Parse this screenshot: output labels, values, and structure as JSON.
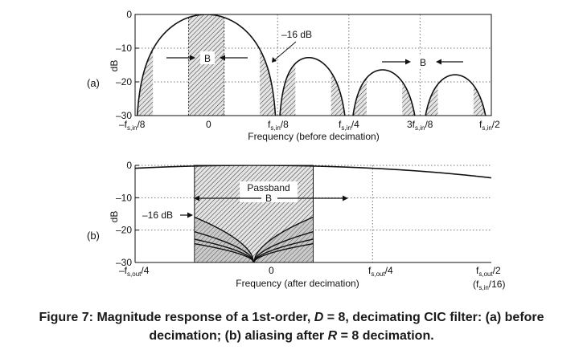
{
  "chart_data": [
    {
      "panel_label": "(a)",
      "type": "line",
      "xlabel": "Frequency (before decimation)",
      "ylabel": "dB",
      "x_tick_labels": [
        "–f",
        "0",
        "f",
        "f",
        "3f",
        "f"
      ],
      "x_tick_values": [
        -0.125,
        0,
        0.125,
        0.25,
        0.375,
        0.5
      ],
      "y_ticks": [
        0,
        -10,
        -20,
        -30
      ],
      "y_tick_labels": [
        "0",
        "–10",
        "–20",
        "–30"
      ],
      "xlim": [
        -0.125,
        0.5
      ],
      "ylim": [
        -30,
        0
      ],
      "grid": true,
      "curve": "20*log10(|sin(8*pi*f)/(8*sin(pi*f))|)",
      "series_nulls": [
        0.125,
        0.25,
        0.375,
        0.5
      ],
      "sidelobe_peaks_db": [
        -13.5,
        -17.8,
        -19.9,
        -20.7
      ],
      "passband": [
        -0.03125,
        0.03125
      ],
      "aliasing_bands": [
        [
          -0.15625,
          -0.09375
        ],
        [
          0.09375,
          0.15625
        ],
        [
          0.21875,
          0.28125
        ],
        [
          0.34375,
          0.40625
        ],
        [
          0.46875,
          0.53125
        ]
      ],
      "annotation_text": "–16 dB",
      "annotation_value_db": -16,
      "band_label": "B"
    },
    {
      "panel_label": "(b)",
      "type": "line",
      "xlabel": "Frequency (after decimation)",
      "ylabel": "dB",
      "x_tick_labels": [
        "–f",
        "0",
        "f",
        "f"
      ],
      "x_tick_values": [
        -0.25,
        0,
        0.25,
        0.5
      ],
      "y_ticks": [
        0,
        -10,
        -20,
        -30
      ],
      "y_tick_labels": [
        "0",
        "–10",
        "–20",
        "–30"
      ],
      "xlim": [
        -0.25,
        0.5
      ],
      "ylim": [
        -30,
        0
      ],
      "grid": true,
      "curve": "20*log10(|sin(pi*f)/(8*sin(pi*f/8))|)",
      "passband": [
        -0.125,
        0.125
      ],
      "alias_envelope_db_at_band_edge": [
        -16,
        -20.5,
        -22.8,
        -24.2
      ],
      "annotation_text": "–16 dB",
      "passband_label": "Passband",
      "band_label": "B"
    }
  ],
  "labels": {
    "a": {
      "fs_in": "f",
      "sub_s_in": "s,in",
      "over8": "/8",
      "over4": "/4",
      "over2": "/2",
      "minus": "–f",
      "three": "3f",
      "zero": "0"
    },
    "b": {
      "sub_s_out": "s,out",
      "over4": "/4",
      "over2": "/2",
      "minus": "–f",
      "f": "f",
      "zero": "0",
      "paren_open": "(f",
      "paren_sub": "s,in",
      "paren_close": "/16)"
    }
  },
  "caption": {
    "prefix": "Figure 7: Magnitude response of a 1st-order, ",
    "d_sym": "D",
    "d_eq": " = 8, decimating CIC filter: (a) before decimation; (b) aliasing after ",
    "r_sym": "R",
    "r_eq": " = 8 decimation."
  },
  "colors": {
    "line": "#111111",
    "grid": "#777777",
    "caption": "#1a1a1a"
  }
}
